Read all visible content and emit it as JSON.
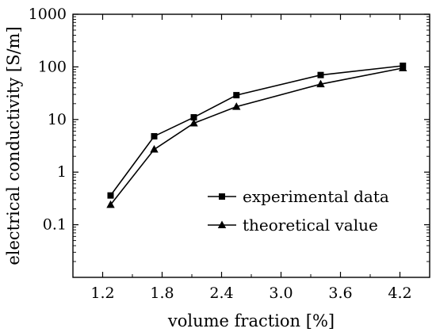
{
  "chart_data": {
    "type": "line",
    "title": "",
    "xlabel": "volume fraction [%]",
    "ylabel": "electrical conductivity [S/m]",
    "xlim": [
      0.9,
      4.5
    ],
    "ylim": [
      0.01,
      1000
    ],
    "yscale": "log",
    "xticks": [
      1.2,
      1.8,
      2.4,
      3.0,
      3.6,
      4.2
    ],
    "xtick_labels": [
      "1.2",
      "1.8",
      "2.4",
      "3.0",
      "3.6",
      "4.2"
    ],
    "yticks": [
      0.1,
      1,
      10,
      100,
      1000
    ],
    "ytick_labels": [
      "0.1",
      "1",
      "10",
      "100",
      "1000"
    ],
    "grid": false,
    "legend_position": "lower-right",
    "series": [
      {
        "name": "experimental data",
        "marker": "square",
        "color": "#000000",
        "x": [
          1.28,
          1.72,
          2.12,
          2.55,
          3.4,
          4.23
        ],
        "y": [
          0.36,
          4.8,
          11,
          29,
          70,
          105
        ]
      },
      {
        "name": "theoretical value",
        "marker": "triangle",
        "color": "#000000",
        "x": [
          1.28,
          1.72,
          2.12,
          2.55,
          3.4,
          4.23
        ],
        "y": [
          0.24,
          2.7,
          8.5,
          17.5,
          47,
          95
        ]
      }
    ]
  }
}
